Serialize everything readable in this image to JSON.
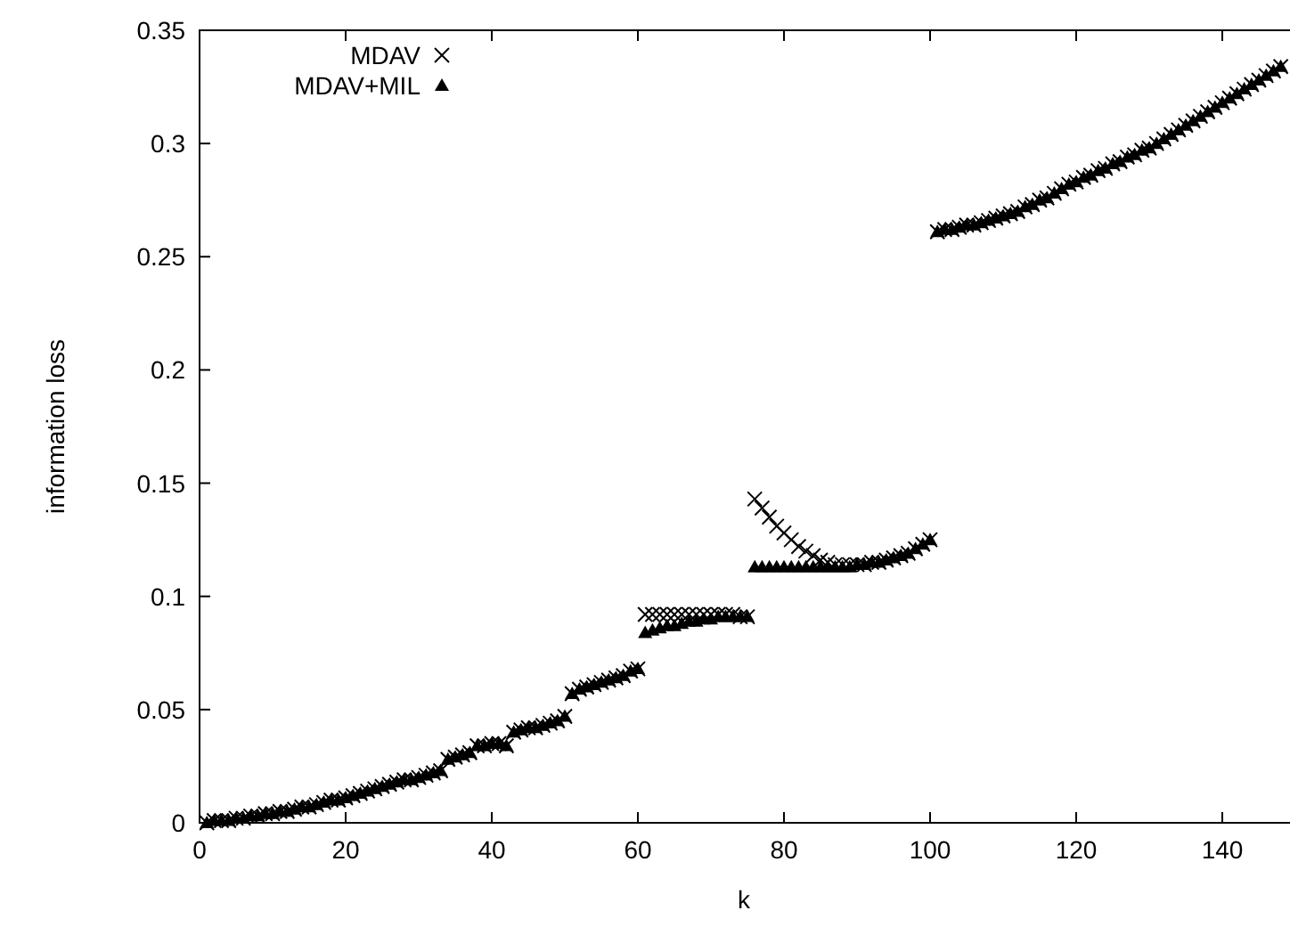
{
  "chart_data": {
    "type": "scatter",
    "xlabel": "k",
    "ylabel": "information loss",
    "xlim": [
      0,
      150
    ],
    "ylim": [
      0,
      0.35
    ],
    "xticks": [
      0,
      20,
      40,
      60,
      80,
      100,
      120,
      140
    ],
    "yticks": [
      0,
      0.05,
      0.1,
      0.15,
      0.2,
      0.25,
      0.3,
      0.35
    ],
    "legend": "top left",
    "grid": false,
    "x": [
      1,
      2,
      3,
      4,
      5,
      6,
      7,
      8,
      9,
      10,
      11,
      12,
      13,
      14,
      15,
      16,
      17,
      18,
      19,
      20,
      21,
      22,
      23,
      24,
      25,
      26,
      27,
      28,
      29,
      30,
      31,
      32,
      33,
      34,
      35,
      36,
      37,
      38,
      39,
      40,
      41,
      42,
      43,
      44,
      45,
      46,
      47,
      48,
      49,
      50,
      51,
      52,
      53,
      54,
      55,
      56,
      57,
      58,
      59,
      60,
      61,
      62,
      63,
      64,
      65,
      66,
      67,
      68,
      69,
      70,
      71,
      72,
      73,
      74,
      75,
      76,
      77,
      78,
      79,
      80,
      81,
      82,
      83,
      84,
      85,
      86,
      87,
      88,
      89,
      90,
      91,
      92,
      93,
      94,
      95,
      96,
      97,
      98,
      99,
      100,
      101,
      102,
      103,
      104,
      105,
      106,
      107,
      108,
      109,
      110,
      111,
      112,
      113,
      114,
      115,
      116,
      117,
      118,
      119,
      120,
      121,
      122,
      123,
      124,
      125,
      126,
      127,
      128,
      129,
      130,
      131,
      132,
      133,
      134,
      135,
      136,
      137,
      138,
      139,
      140,
      141,
      142,
      143,
      144,
      145,
      146,
      147,
      148
    ],
    "series": [
      {
        "name": "MDAV",
        "color": "#000000",
        "marker": "cross",
        "values": [
          0.0,
          0.001,
          0.001,
          0.001,
          0.002,
          0.002,
          0.003,
          0.003,
          0.004,
          0.004,
          0.005,
          0.005,
          0.006,
          0.007,
          0.007,
          0.008,
          0.009,
          0.01,
          0.01,
          0.011,
          0.012,
          0.013,
          0.014,
          0.015,
          0.016,
          0.017,
          0.018,
          0.019,
          0.019,
          0.02,
          0.021,
          0.022,
          0.023,
          0.028,
          0.029,
          0.03,
          0.031,
          0.034,
          0.034,
          0.035,
          0.035,
          0.034,
          0.04,
          0.041,
          0.042,
          0.042,
          0.043,
          0.044,
          0.045,
          0.047,
          0.057,
          0.059,
          0.06,
          0.061,
          0.062,
          0.063,
          0.064,
          0.065,
          0.067,
          0.068,
          0.092,
          0.092,
          0.092,
          0.092,
          0.092,
          0.092,
          0.092,
          0.092,
          0.092,
          0.092,
          0.092,
          0.092,
          0.092,
          0.091,
          0.091,
          0.143,
          0.139,
          0.135,
          0.131,
          0.128,
          0.125,
          0.122,
          0.12,
          0.118,
          0.116,
          0.115,
          0.114,
          0.114,
          0.114,
          0.114,
          0.114,
          0.115,
          0.115,
          0.116,
          0.117,
          0.118,
          0.119,
          0.121,
          0.123,
          0.125,
          0.261,
          0.262,
          0.262,
          0.263,
          0.264,
          0.264,
          0.265,
          0.266,
          0.267,
          0.268,
          0.269,
          0.27,
          0.272,
          0.273,
          0.275,
          0.276,
          0.278,
          0.28,
          0.282,
          0.283,
          0.285,
          0.286,
          0.288,
          0.289,
          0.291,
          0.292,
          0.294,
          0.295,
          0.297,
          0.298,
          0.3,
          0.302,
          0.304,
          0.306,
          0.308,
          0.31,
          0.312,
          0.314,
          0.316,
          0.318,
          0.32,
          0.322,
          0.324,
          0.326,
          0.328,
          0.33,
          0.332,
          0.334
        ]
      },
      {
        "name": "MDAV+MIL",
        "color": "#000000",
        "marker": "triangle",
        "values": [
          0.0,
          0.001,
          0.001,
          0.001,
          0.002,
          0.002,
          0.003,
          0.003,
          0.004,
          0.004,
          0.005,
          0.005,
          0.006,
          0.007,
          0.007,
          0.008,
          0.009,
          0.01,
          0.01,
          0.011,
          0.012,
          0.013,
          0.014,
          0.015,
          0.016,
          0.017,
          0.018,
          0.019,
          0.019,
          0.02,
          0.021,
          0.022,
          0.023,
          0.028,
          0.029,
          0.03,
          0.031,
          0.034,
          0.034,
          0.035,
          0.035,
          0.034,
          0.04,
          0.041,
          0.042,
          0.042,
          0.043,
          0.044,
          0.045,
          0.047,
          0.057,
          0.059,
          0.06,
          0.061,
          0.062,
          0.063,
          0.064,
          0.065,
          0.067,
          0.068,
          0.084,
          0.085,
          0.086,
          0.087,
          0.087,
          0.088,
          0.089,
          0.089,
          0.09,
          0.09,
          0.091,
          0.091,
          0.091,
          0.091,
          0.091,
          0.113,
          0.113,
          0.113,
          0.113,
          0.113,
          0.113,
          0.113,
          0.113,
          0.113,
          0.113,
          0.113,
          0.113,
          0.113,
          0.113,
          0.114,
          0.114,
          0.115,
          0.115,
          0.116,
          0.117,
          0.118,
          0.119,
          0.121,
          0.123,
          0.125,
          0.261,
          0.262,
          0.262,
          0.263,
          0.264,
          0.264,
          0.265,
          0.266,
          0.267,
          0.268,
          0.269,
          0.27,
          0.272,
          0.273,
          0.275,
          0.276,
          0.278,
          0.28,
          0.282,
          0.283,
          0.285,
          0.286,
          0.288,
          0.289,
          0.291,
          0.292,
          0.294,
          0.295,
          0.297,
          0.298,
          0.3,
          0.302,
          0.304,
          0.306,
          0.308,
          0.31,
          0.312,
          0.314,
          0.316,
          0.318,
          0.32,
          0.322,
          0.324,
          0.326,
          0.328,
          0.33,
          0.332,
          0.334
        ]
      }
    ]
  }
}
